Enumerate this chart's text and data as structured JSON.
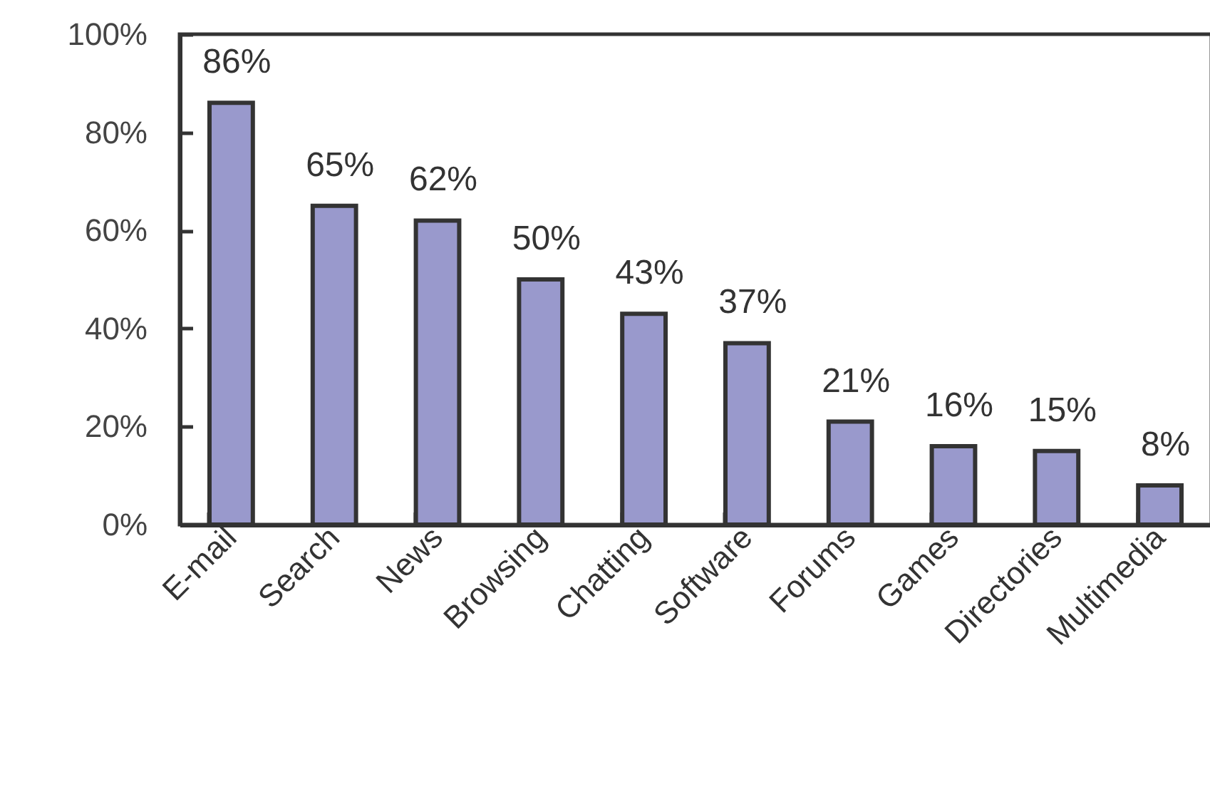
{
  "chart_data": {
    "type": "bar",
    "categories": [
      "E-mail",
      "Search",
      "News",
      "Browsing",
      "Chatting",
      "Software",
      "Forums",
      "Games",
      "Directories",
      "Multimedia"
    ],
    "values": [
      86,
      65,
      62,
      50,
      43,
      37,
      21,
      16,
      15,
      8
    ],
    "value_labels": [
      "86%",
      "65%",
      "62%",
      "50%",
      "43%",
      "37%",
      "21%",
      "16%",
      "15%",
      "8%"
    ],
    "color": "#9999cc",
    "ylim": [
      0,
      100
    ],
    "yticks": [
      {
        "value": 0,
        "label": "0%"
      },
      {
        "value": 20,
        "label": "20%"
      },
      {
        "value": 40,
        "label": "40%"
      },
      {
        "value": 60,
        "label": "60%"
      },
      {
        "value": 80,
        "label": "80%"
      },
      {
        "value": 100,
        "label": "100%"
      }
    ]
  }
}
